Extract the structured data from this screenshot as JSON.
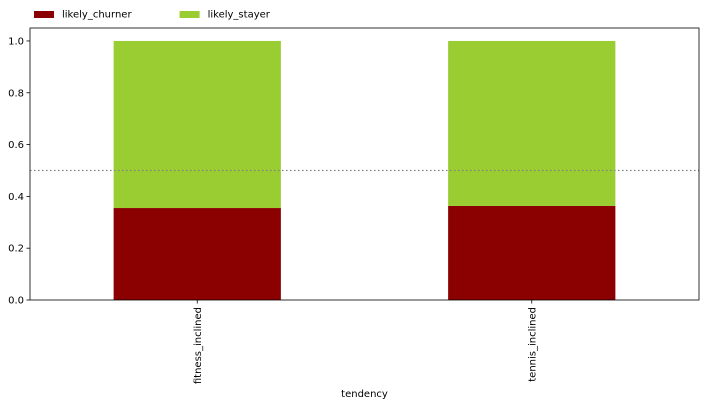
{
  "chart_data": {
    "type": "bar",
    "stacked": true,
    "categories": [
      "fitness_inclined",
      "tennis_inclined"
    ],
    "series": [
      {
        "name": "likely_churner",
        "values": [
          0.355,
          0.363
        ],
        "color": "#8b0000"
      },
      {
        "name": "likely_stayer",
        "values": [
          0.645,
          0.637
        ],
        "color": "#9acd32"
      }
    ],
    "xlabel": "tendency",
    "ylabel": "",
    "ylim": [
      0,
      1.05
    ],
    "yticks": [
      0.0,
      0.2,
      0.4,
      0.6,
      0.8,
      1.0
    ],
    "ytick_labels": [
      "0.0",
      "0.2",
      "0.4",
      "0.6",
      "0.8",
      "1.0"
    ],
    "reference_line": {
      "y": 0.5,
      "style": "dotted",
      "color": "#808080"
    },
    "legend_position": "top-left",
    "grid": false
  }
}
